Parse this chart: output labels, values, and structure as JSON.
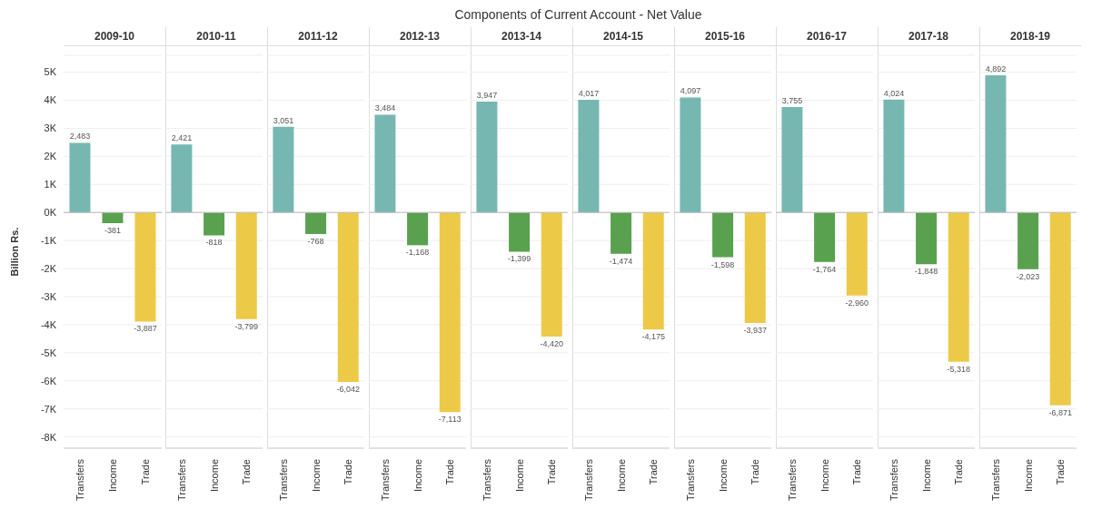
{
  "chart_data": [
    {
      "type": "bar",
      "title": "2009-10",
      "annotations": [
        "Components of Current Account - Net Value"
      ],
      "ylabel": "Billion Rs.",
      "categories": [
        "Transfers",
        "Income",
        "Trade"
      ],
      "values": [
        2483,
        -381,
        -3887
      ],
      "value_labels": [
        "2,483",
        "-381",
        "-3,887"
      ],
      "colors": [
        "#76b7b2",
        "#59a14f",
        "#edc948"
      ],
      "ylim": [
        -8400,
        5600
      ],
      "yticks": [
        {
          "value": -8000,
          "label": "-8K"
        },
        {
          "value": -7000,
          "label": "-7K"
        },
        {
          "value": -6000,
          "label": "-6K"
        },
        {
          "value": -5000,
          "label": "-5K"
        },
        {
          "value": -4000,
          "label": "-4K"
        },
        {
          "value": -3000,
          "label": "-3K"
        },
        {
          "value": -2000,
          "label": "-2K"
        },
        {
          "value": -1000,
          "label": "-1K"
        },
        {
          "value": 0,
          "label": "0K"
        },
        {
          "value": 1000,
          "label": "1K"
        },
        {
          "value": 2000,
          "label": "2K"
        },
        {
          "value": 3000,
          "label": "3K"
        },
        {
          "value": 4000,
          "label": "4K"
        },
        {
          "value": 5000,
          "label": "5K"
        }
      ],
      "grid": "y"
    },
    {
      "type": "bar",
      "title": "2010-11",
      "categories": [
        "Transfers",
        "Income",
        "Trade"
      ],
      "values": [
        2421,
        -818,
        -3799
      ],
      "value_labels": [
        "2,421",
        "-818",
        "-3,799"
      ],
      "colors": [
        "#76b7b2",
        "#59a14f",
        "#edc948"
      ],
      "ylim": [
        -8400,
        5600
      ],
      "tick_labels": "x",
      "grid": "y"
    },
    {
      "type": "bar",
      "title": "2011-12",
      "categories": [
        "Transfers",
        "Income",
        "Trade"
      ],
      "values": [
        3051,
        -768,
        -6042
      ],
      "value_labels": [
        "3,051",
        "-768",
        "-6,042"
      ],
      "colors": [
        "#76b7b2",
        "#59a14f",
        "#edc948"
      ],
      "ylim": [
        -8400,
        5600
      ],
      "tick_labels": "x",
      "grid": "y"
    },
    {
      "type": "bar",
      "title": "2012-13",
      "categories": [
        "Transfers",
        "Income",
        "Trade"
      ],
      "values": [
        3484,
        -1168,
        -7113
      ],
      "value_labels": [
        "3,484",
        "-1,168",
        "-7,113"
      ],
      "colors": [
        "#76b7b2",
        "#59a14f",
        "#edc948"
      ],
      "ylim": [
        -8400,
        5600
      ],
      "tick_labels": "x",
      "grid": "y"
    },
    {
      "type": "bar",
      "title": "2013-14",
      "categories": [
        "Transfers",
        "Income",
        "Trade"
      ],
      "values": [
        3947,
        -1399,
        -4420
      ],
      "value_labels": [
        "3,947",
        "-1,399",
        "-4,420"
      ],
      "colors": [
        "#76b7b2",
        "#59a14f",
        "#edc948"
      ],
      "ylim": [
        -8400,
        5600
      ],
      "tick_labels": "x",
      "grid": "y"
    },
    {
      "type": "bar",
      "title": "2014-15",
      "categories": [
        "Transfers",
        "Income",
        "Trade"
      ],
      "values": [
        4017,
        -1474,
        -4175
      ],
      "value_labels": [
        "4,017",
        "-1,474",
        "-4,175"
      ],
      "colors": [
        "#76b7b2",
        "#59a14f",
        "#edc948"
      ],
      "ylim": [
        -8400,
        5600
      ],
      "tick_labels": "x",
      "grid": "y"
    },
    {
      "type": "bar",
      "title": "2015-16",
      "categories": [
        "Transfers",
        "Income",
        "Trade"
      ],
      "values": [
        4097,
        -1598,
        -3937
      ],
      "value_labels": [
        "4,097",
        "-1,598",
        "-3,937"
      ],
      "colors": [
        "#76b7b2",
        "#59a14f",
        "#edc948"
      ],
      "ylim": [
        -8400,
        5600
      ],
      "tick_labels": "x",
      "grid": "y"
    },
    {
      "type": "bar",
      "title": "2016-17",
      "categories": [
        "Transfers",
        "Income",
        "Trade"
      ],
      "values": [
        3755,
        -1764,
        -2960
      ],
      "value_labels": [
        "3,755",
        "-1,764",
        "-2,960"
      ],
      "colors": [
        "#76b7b2",
        "#59a14f",
        "#edc948"
      ],
      "ylim": [
        -8400,
        5600
      ],
      "tick_labels": "x",
      "grid": "y"
    },
    {
      "type": "bar",
      "title": "2017-18",
      "categories": [
        "Transfers",
        "Income",
        "Trade"
      ],
      "values": [
        4024,
        -1848,
        -5318
      ],
      "value_labels": [
        "4,024",
        "-1,848",
        "-5,318"
      ],
      "colors": [
        "#76b7b2",
        "#59a14f",
        "#edc948"
      ],
      "ylim": [
        -8400,
        5600
      ],
      "tick_labels": "x",
      "grid": "y"
    },
    {
      "type": "bar",
      "title": "2018-19",
      "categories": [
        "Transfers",
        "Income",
        "Trade"
      ],
      "values": [
        4892,
        -2023,
        -6871
      ],
      "value_labels": [
        "4,892",
        "-2,023",
        "-6,871"
      ],
      "colors": [
        "#76b7b2",
        "#59a14f",
        "#edc948"
      ],
      "ylim": [
        -8400,
        5600
      ],
      "tick_labels": "x",
      "grid": "y"
    }
  ]
}
